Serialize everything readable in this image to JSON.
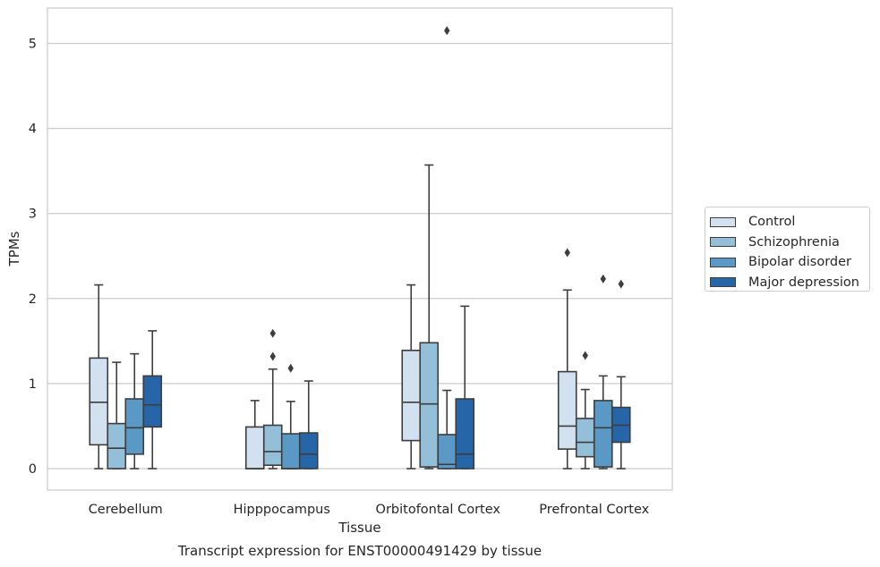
{
  "chart_data": {
    "type": "box",
    "title": "Transcript expression for ENST00000491429 by tissue",
    "xlabel": "Tissue",
    "ylabel": "TPMs",
    "ylim": [
      -0.25,
      5.4
    ],
    "yticks": [
      0,
      1,
      2,
      3,
      4,
      5
    ],
    "grid": "horizontal",
    "legend_position": "right",
    "categories": [
      "Cerebellum",
      "Hipppocampus",
      "Orbitofontal Cortex",
      "Prefrontal Cortex"
    ],
    "series": [
      {
        "name": "Control",
        "color": "#d1e1f0",
        "boxes": [
          {
            "whisker_low": 0.0,
            "q1": 0.28,
            "median": 0.78,
            "q3": 1.3,
            "whisker_high": 2.16,
            "outliers": []
          },
          {
            "whisker_low": 0.0,
            "q1": 0.0,
            "median": 0.0,
            "q3": 0.49,
            "whisker_high": 0.8,
            "outliers": []
          },
          {
            "whisker_low": 0.0,
            "q1": 0.33,
            "median": 0.78,
            "q3": 1.39,
            "whisker_high": 2.16,
            "outliers": []
          },
          {
            "whisker_low": 0.0,
            "q1": 0.23,
            "median": 0.5,
            "q3": 1.14,
            "whisker_high": 2.1,
            "outliers": [
              2.54
            ]
          }
        ]
      },
      {
        "name": "Schizophrenia",
        "color": "#94bfd8",
        "boxes": [
          {
            "whisker_low": 0.0,
            "q1": 0.0,
            "median": 0.24,
            "q3": 0.53,
            "whisker_high": 1.25,
            "outliers": []
          },
          {
            "whisker_low": 0.0,
            "q1": 0.04,
            "median": 0.2,
            "q3": 0.51,
            "whisker_high": 1.17,
            "outliers": [
              1.32,
              1.59
            ]
          },
          {
            "whisker_low": 0.0,
            "q1": 0.02,
            "median": 0.76,
            "q3": 1.48,
            "whisker_high": 3.57,
            "outliers": []
          },
          {
            "whisker_low": 0.0,
            "q1": 0.14,
            "median": 0.31,
            "q3": 0.59,
            "whisker_high": 0.93,
            "outliers": [
              1.33
            ]
          }
        ]
      },
      {
        "name": "Bipolar disorder",
        "color": "#5a99c5",
        "boxes": [
          {
            "whisker_low": 0.0,
            "q1": 0.17,
            "median": 0.48,
            "q3": 0.82,
            "whisker_high": 1.35,
            "outliers": []
          },
          {
            "whisker_low": 0.0,
            "q1": 0.0,
            "median": 0.0,
            "q3": 0.41,
            "whisker_high": 0.79,
            "outliers": [
              1.18
            ]
          },
          {
            "whisker_low": 0.0,
            "q1": 0.0,
            "median": 0.05,
            "q3": 0.4,
            "whisker_high": 0.92,
            "outliers": [
              5.15
            ]
          },
          {
            "whisker_low": 0.0,
            "q1": 0.02,
            "median": 0.48,
            "q3": 0.8,
            "whisker_high": 1.09,
            "outliers": [
              2.23
            ]
          }
        ]
      },
      {
        "name": "Major depression",
        "color": "#2565a8",
        "boxes": [
          {
            "whisker_low": 0.0,
            "q1": 0.49,
            "median": 0.75,
            "q3": 1.09,
            "whisker_high": 1.62,
            "outliers": []
          },
          {
            "whisker_low": 0.0,
            "q1": 0.0,
            "median": 0.17,
            "q3": 0.42,
            "whisker_high": 1.03,
            "outliers": []
          },
          {
            "whisker_low": 0.0,
            "q1": 0.0,
            "median": 0.17,
            "q3": 0.82,
            "whisker_high": 1.91,
            "outliers": []
          },
          {
            "whisker_low": 0.0,
            "q1": 0.31,
            "median": 0.51,
            "q3": 0.72,
            "whisker_high": 1.08,
            "outliers": [
              2.17
            ]
          }
        ]
      }
    ]
  }
}
